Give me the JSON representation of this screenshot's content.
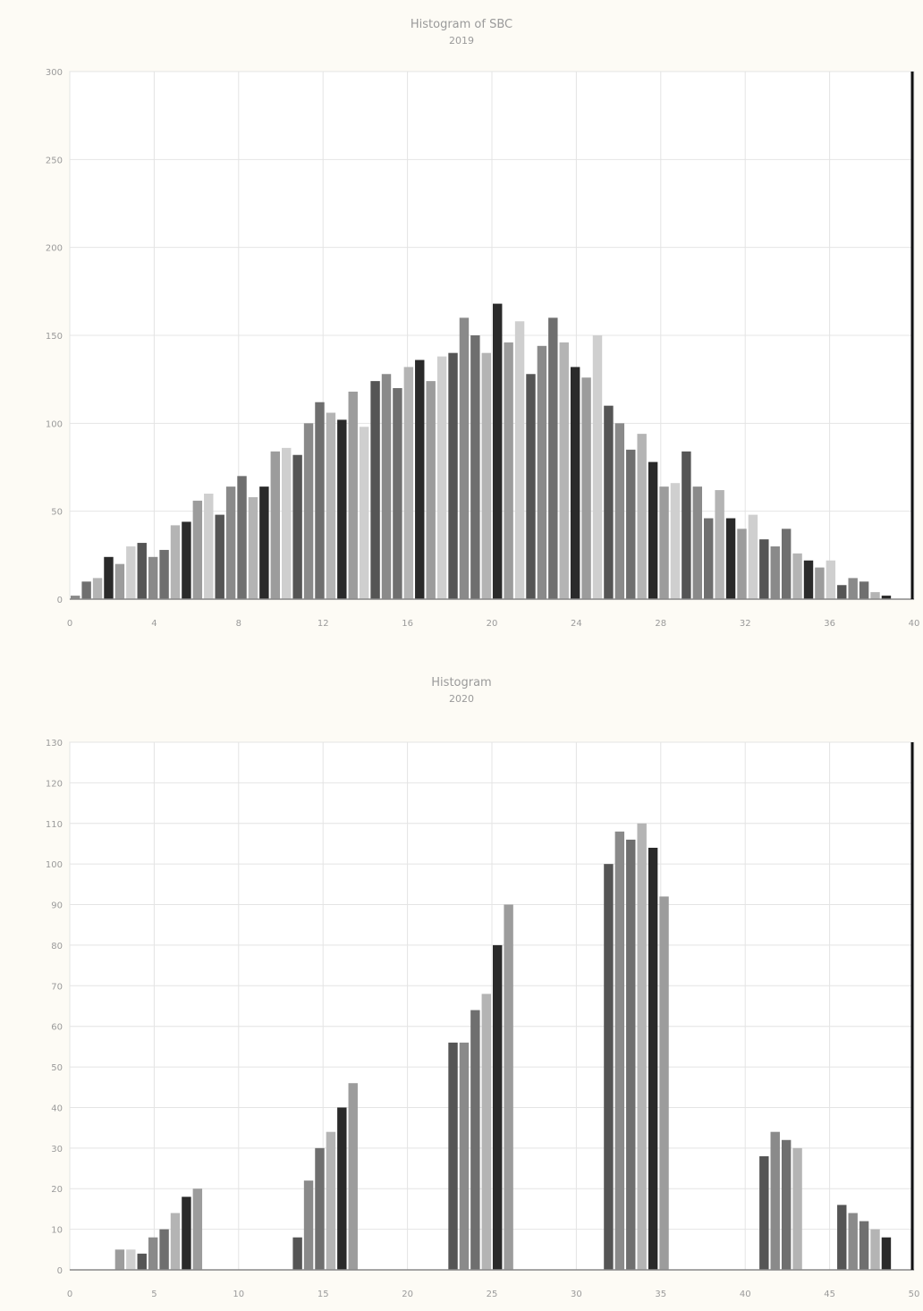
{
  "chart_data": [
    {
      "type": "bar",
      "title": "Histogram of SBC",
      "subtitle": "2019",
      "ylim": [
        0,
        300
      ],
      "yticks": [
        "0",
        "50",
        "100",
        "150",
        "200",
        "250",
        "300"
      ],
      "xticks": [
        "0",
        "4",
        "8",
        "12",
        "16",
        "20",
        "24",
        "28",
        "32",
        "36",
        "40"
      ],
      "grid": true,
      "values": [
        2,
        10,
        12,
        24,
        20,
        30,
        32,
        24,
        28,
        42,
        44,
        56,
        60,
        48,
        64,
        70,
        58,
        64,
        84,
        86,
        82,
        100,
        112,
        106,
        102,
        118,
        98,
        124,
        128,
        120,
        132,
        136,
        124,
        138,
        140,
        160,
        150,
        140,
        168,
        146,
        158,
        128,
        144,
        160,
        146,
        132,
        126,
        150,
        110,
        100,
        85,
        94,
        78,
        64,
        66,
        84,
        64,
        46,
        62,
        46,
        40,
        48,
        34,
        30,
        40,
        26,
        22,
        18,
        22,
        8,
        12,
        10,
        4,
        2,
        0,
        0
      ]
    },
    {
      "type": "bar",
      "title": "Histogram",
      "subtitle": "2020",
      "ylim": [
        0,
        130
      ],
      "yticks": [
        "0",
        "10",
        "20",
        "30",
        "40",
        "50",
        "60",
        "70",
        "80",
        "90",
        "100",
        "110",
        "120",
        "130"
      ],
      "xticks": [
        "0",
        "5",
        "10",
        "15",
        "20",
        "25",
        "30",
        "35",
        "40",
        "45",
        "50"
      ],
      "grid": true,
      "values": [
        0,
        0,
        0,
        0,
        5,
        5,
        4,
        8,
        10,
        14,
        18,
        20,
        0,
        0,
        0,
        0,
        0,
        0,
        0,
        0,
        8,
        22,
        30,
        34,
        40,
        46,
        0,
        0,
        0,
        0,
        0,
        0,
        0,
        0,
        56,
        56,
        64,
        68,
        80,
        90,
        0,
        0,
        0,
        0,
        0,
        0,
        0,
        0,
        100,
        108,
        106,
        110,
        104,
        92,
        0,
        0,
        0,
        0,
        0,
        0,
        0,
        0,
        28,
        34,
        32,
        30,
        0,
        0,
        0,
        16,
        14,
        12,
        10,
        8,
        0,
        0
      ]
    }
  ]
}
